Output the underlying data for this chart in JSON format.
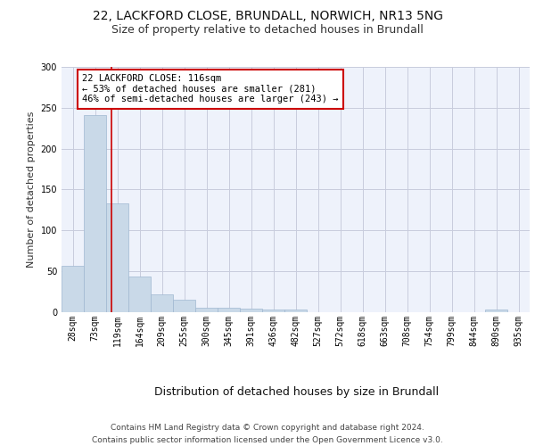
{
  "title_line1": "22, LACKFORD CLOSE, BRUNDALL, NORWICH, NR13 5NG",
  "title_line2": "Size of property relative to detached houses in Brundall",
  "xlabel": "Distribution of detached houses by size in Brundall",
  "ylabel": "Number of detached properties",
  "bin_labels": [
    "28sqm",
    "73sqm",
    "119sqm",
    "164sqm",
    "209sqm",
    "255sqm",
    "300sqm",
    "345sqm",
    "391sqm",
    "436sqm",
    "482sqm",
    "527sqm",
    "572sqm",
    "618sqm",
    "663sqm",
    "708sqm",
    "754sqm",
    "799sqm",
    "844sqm",
    "890sqm",
    "935sqm"
  ],
  "bar_values": [
    57,
    241,
    133,
    44,
    22,
    15,
    6,
    6,
    4,
    3,
    3,
    0,
    0,
    0,
    0,
    0,
    0,
    0,
    0,
    3,
    0
  ],
  "bar_color": "#c9d9e8",
  "bar_edge_color": "#a0b8d0",
  "vline_x": 1.73,
  "vline_color": "#cc0000",
  "annotation_text": "22 LACKFORD CLOSE: 116sqm\n← 53% of detached houses are smaller (281)\n46% of semi-detached houses are larger (243) →",
  "annotation_box_color": "white",
  "annotation_box_edge": "#cc0000",
  "ylim": [
    0,
    300
  ],
  "yticks": [
    0,
    50,
    100,
    150,
    200,
    250,
    300
  ],
  "background_color": "#eef2fb",
  "grid_color": "#c8ccdd",
  "footer_text": "Contains HM Land Registry data © Crown copyright and database right 2024.\nContains public sector information licensed under the Open Government Licence v3.0.",
  "title_fontsize": 10,
  "subtitle_fontsize": 9,
  "xlabel_fontsize": 9,
  "ylabel_fontsize": 8,
  "tick_fontsize": 7,
  "annotation_fontsize": 7.5,
  "footer_fontsize": 6.5
}
